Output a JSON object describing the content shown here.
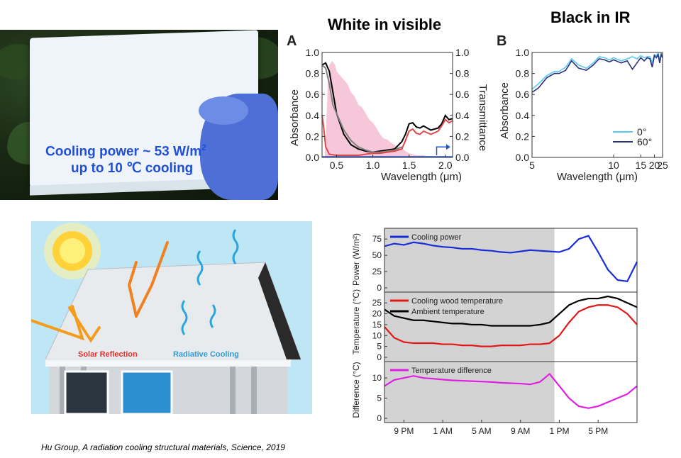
{
  "photo": {
    "caption_line1": "Cooling power ~  53 W/m",
    "caption_sup": "2",
    "caption_line2": "up to  10 ℃ cooling"
  },
  "headings": {
    "white_visible": "White in visible",
    "black_ir": "Black in IR"
  },
  "illustration": {
    "solar_label": "Solar Reflection",
    "radiative_label": "Radiative Cooling",
    "solar_color": "#e8302a",
    "radiative_color": "#2e9bd6"
  },
  "reference": "Hu Group, A radiation cooling structural materials, Science, 2019",
  "chart_data": [
    {
      "id": "A",
      "type": "line",
      "panel_label": "A",
      "xlabel": "Wavelength (μm)",
      "ylabel": "Absorbance",
      "ylabel_right": "Transmittance",
      "xlim": [
        0.3,
        2.1
      ],
      "ylim": [
        0,
        1.0
      ],
      "x_ticks": [
        "0.5",
        "1.0",
        "1.5",
        "2.0"
      ],
      "x_tick_values": [
        0.5,
        1.0,
        1.5,
        2.0
      ],
      "y_ticks": [
        "0.0",
        "0.2",
        "0.4",
        "0.6",
        "0.8",
        "1.0"
      ],
      "y2_ticks": [
        "0.0",
        "0.2",
        "0.4",
        "0.6",
        "0.8",
        "1.0"
      ],
      "series": [
        {
          "color": "#000000",
          "x": [
            0.3,
            0.35,
            0.4,
            0.45,
            0.5,
            0.6,
            0.7,
            0.8,
            0.9,
            1.0,
            1.1,
            1.2,
            1.3,
            1.4,
            1.45,
            1.5,
            1.55,
            1.6,
            1.65,
            1.7,
            1.8,
            1.9,
            1.95,
            2.0,
            2.05,
            2.1
          ],
          "y": [
            0.88,
            0.9,
            0.82,
            0.62,
            0.42,
            0.22,
            0.12,
            0.08,
            0.06,
            0.05,
            0.06,
            0.07,
            0.08,
            0.15,
            0.22,
            0.32,
            0.33,
            0.29,
            0.28,
            0.3,
            0.26,
            0.28,
            0.32,
            0.4,
            0.36,
            0.37
          ]
        },
        {
          "color": "#808080",
          "x": [
            0.3,
            0.35,
            0.4,
            0.45,
            0.5,
            0.6,
            0.7,
            0.8,
            0.9,
            1.0,
            1.1,
            1.2,
            1.3,
            1.4
          ],
          "y": [
            0.88,
            0.85,
            0.7,
            0.5,
            0.42,
            0.26,
            0.16,
            0.1,
            0.07,
            0.05,
            0.05,
            0.06,
            0.07,
            0.1
          ]
        },
        {
          "color": "#e04848",
          "x": [
            0.3,
            0.32,
            0.35,
            0.4,
            0.5,
            0.6,
            0.7,
            0.8,
            0.9,
            1.0,
            1.1,
            1.2,
            1.3,
            1.4,
            1.45,
            1.5,
            1.55,
            1.6,
            1.65,
            1.7,
            1.8,
            1.9,
            1.95,
            2.0,
            2.05,
            2.1
          ],
          "y": [
            0.4,
            0.3,
            0.1,
            0.03,
            0.02,
            0.02,
            0.02,
            0.02,
            0.03,
            0.04,
            0.04,
            0.05,
            0.06,
            0.08,
            0.16,
            0.25,
            0.27,
            0.23,
            0.22,
            0.25,
            0.22,
            0.25,
            0.3,
            0.36,
            0.33,
            0.35
          ]
        },
        {
          "color": "#2255cc",
          "x": [
            0.3,
            2.1
          ],
          "y": [
            0.005,
            0.005
          ]
        }
      ],
      "transmittance_fill_color": "#f2b9cf",
      "transmittance_fill": {
        "x": [
          0.34,
          0.36,
          0.38,
          0.4,
          0.42,
          0.44,
          0.46,
          0.48,
          0.5,
          0.55,
          0.6,
          0.65,
          0.7,
          0.75,
          0.8,
          0.85,
          0.9,
          0.95,
          1.0,
          1.05,
          1.1,
          1.15,
          1.2,
          1.25,
          1.3,
          1.35,
          1.4,
          1.45,
          1.5,
          1.55,
          1.6,
          1.65,
          1.7,
          1.75,
          1.8,
          1.85,
          1.9,
          1.95,
          2.0
        ],
        "y": [
          0.05,
          0.35,
          0.7,
          0.88,
          0.9,
          0.92,
          0.9,
          0.88,
          0.82,
          0.78,
          0.74,
          0.7,
          0.62,
          0.58,
          0.5,
          0.48,
          0.42,
          0.36,
          0.33,
          0.28,
          0.22,
          0.18,
          0.17,
          0.14,
          0.12,
          0.1,
          0.09,
          0.06,
          0.04,
          0.03,
          0.02,
          0.02,
          0.02,
          0.01,
          0.01,
          0.01,
          0.01,
          0.01,
          0.01
        ]
      }
    },
    {
      "id": "B",
      "type": "line",
      "panel_label": "B",
      "xlabel": "Wavelength (μm)",
      "ylabel": "Absorbance",
      "x_scale": "reciprocal",
      "xlim": [
        5,
        25
      ],
      "ylim": [
        0,
        1.0
      ],
      "x_ticks": [
        "5",
        "10",
        "15",
        "20",
        "25"
      ],
      "x_tick_values": [
        5,
        10,
        15,
        20,
        25
      ],
      "y_ticks": [
        "0.0",
        "0.2",
        "0.4",
        "0.6",
        "0.8",
        "1.0"
      ],
      "legend": [
        "0°",
        "60°"
      ],
      "legend_position": "bottom-right",
      "series": [
        {
          "name": "0°",
          "color": "#5cc8ee",
          "x": [
            5.0,
            5.2,
            5.5,
            5.8,
            6.0,
            6.3,
            6.6,
            7.0,
            7.5,
            8.0,
            8.5,
            9.0,
            9.5,
            10,
            11,
            12,
            13,
            14,
            15,
            16,
            17,
            18,
            19,
            20,
            21,
            22,
            23,
            24,
            25
          ],
          "y": [
            0.65,
            0.7,
            0.78,
            0.82,
            0.82,
            0.86,
            0.94,
            0.88,
            0.85,
            0.9,
            0.96,
            0.95,
            0.93,
            0.95,
            0.92,
            0.94,
            0.96,
            0.94,
            0.97,
            0.95,
            0.96,
            0.96,
            0.9,
            0.98,
            0.97,
            0.99,
            0.93,
            0.99,
            0.98
          ]
        },
        {
          "name": "60°",
          "color": "#2a2f80",
          "x": [
            5.0,
            5.2,
            5.5,
            5.8,
            6.0,
            6.3,
            6.6,
            7.0,
            7.5,
            8.0,
            8.5,
            9.0,
            9.5,
            10,
            11,
            12,
            13,
            14,
            15,
            16,
            17,
            18,
            19,
            20,
            21,
            22,
            23,
            24,
            25
          ],
          "y": [
            0.62,
            0.66,
            0.76,
            0.8,
            0.8,
            0.83,
            0.92,
            0.85,
            0.83,
            0.88,
            0.94,
            0.93,
            0.91,
            0.93,
            0.9,
            0.92,
            0.84,
            0.9,
            0.95,
            0.92,
            0.95,
            0.94,
            0.86,
            0.97,
            0.95,
            0.98,
            0.9,
            0.98,
            0.95
          ]
        }
      ]
    },
    {
      "id": "cooling_power",
      "type": "line",
      "ylabel": "Power (W/m²)",
      "ylim": [
        0,
        85
      ],
      "y_ticks": [
        "0",
        "25",
        "50",
        "75"
      ],
      "y_tick_values": [
        0,
        25,
        50,
        75
      ],
      "shaded_x_range": [
        0,
        17.5
      ],
      "xlim": [
        0,
        26
      ],
      "series": [
        {
          "name": "Cooling power",
          "color": "#1a2ed8",
          "x": [
            0,
            1,
            2,
            3,
            4,
            5,
            6,
            7,
            8,
            9,
            10,
            11,
            12,
            13,
            14,
            15,
            16,
            17,
            18,
            19,
            20,
            21,
            22,
            23,
            24,
            25,
            26
          ],
          "y": [
            64,
            68,
            66,
            70,
            68,
            65,
            63,
            62,
            60,
            60,
            58,
            57,
            55,
            54,
            56,
            58,
            57,
            56,
            55,
            60,
            75,
            80,
            55,
            28,
            12,
            10,
            40
          ],
          "x2": [
            26
          ],
          "y2": [
            40
          ]
        }
      ]
    },
    {
      "id": "temperature",
      "type": "line",
      "ylabel": "Temperature (°C)",
      "ylim": [
        0,
        28
      ],
      "y_ticks": [
        "0",
        "5",
        "10",
        "15",
        "20",
        "25"
      ],
      "y_tick_values": [
        0,
        5,
        10,
        15,
        20,
        25
      ],
      "shaded_x_range": [
        0,
        17.5
      ],
      "xlim": [
        0,
        26
      ],
      "series": [
        {
          "name": "Cooling wood temperature",
          "color": "#e01818",
          "x": [
            0,
            1,
            2,
            3,
            4,
            5,
            6,
            7,
            8,
            9,
            10,
            11,
            12,
            13,
            14,
            15,
            16,
            17,
            18,
            19,
            20,
            21,
            22,
            23,
            24,
            25,
            26
          ],
          "y": [
            14,
            9,
            7,
            6.5,
            6.5,
            6.5,
            6,
            6,
            5.5,
            5.5,
            5,
            5,
            5.5,
            5.5,
            5.5,
            6,
            6,
            6.5,
            10,
            16,
            21,
            23,
            24,
            24,
            23,
            20,
            15
          ]
        },
        {
          "name": "Ambient temperature",
          "color": "#000000",
          "x": [
            0,
            1,
            2,
            3,
            4,
            5,
            6,
            7,
            8,
            9,
            10,
            11,
            12,
            13,
            14,
            15,
            16,
            17,
            18,
            19,
            20,
            21,
            22,
            23,
            24,
            25,
            26
          ],
          "y": [
            22,
            19,
            18,
            17,
            17,
            16.5,
            16,
            15.5,
            15.5,
            15,
            15,
            14.5,
            14.5,
            14.5,
            14.5,
            14.5,
            15,
            16,
            20,
            24,
            26,
            27,
            27,
            28,
            27,
            25,
            23
          ]
        }
      ]
    },
    {
      "id": "difference",
      "type": "line",
      "ylabel": "Difference (°C)",
      "ylim": [
        0,
        13
      ],
      "y_ticks": [
        "0",
        "5",
        "10"
      ],
      "y_tick_values": [
        0,
        5,
        10
      ],
      "shaded_x_range": [
        0,
        17.5
      ],
      "xlim": [
        0,
        26
      ],
      "x_ticks": [
        "9 PM",
        "1 AM",
        "5 AM",
        "9 AM",
        "1 PM",
        "5 PM"
      ],
      "x_tick_values": [
        2,
        6,
        10,
        14,
        18,
        22
      ],
      "series": [
        {
          "name": "Temperature difference",
          "color": "#e020e0",
          "x": [
            0,
            1,
            2,
            3,
            4,
            5,
            6,
            7,
            8,
            9,
            10,
            11,
            12,
            13,
            14,
            15,
            16,
            17,
            18,
            19,
            20,
            21,
            22,
            23,
            24,
            25,
            26
          ],
          "y": [
            8,
            9.5,
            10,
            10.5,
            10,
            9.8,
            9.6,
            9.4,
            9.3,
            9.2,
            9.1,
            9.0,
            8.8,
            8.7,
            8.6,
            8.4,
            9,
            11,
            8,
            5,
            3,
            2.5,
            3,
            4,
            5,
            6,
            8
          ]
        }
      ]
    }
  ]
}
